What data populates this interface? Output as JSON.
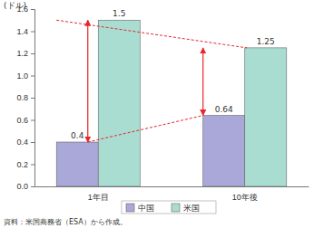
{
  "chart_data": {
    "type": "bar",
    "y_label": "(ドル)",
    "source": "資料：米国商務省（ESA）から作成。",
    "categories": [
      "1年目",
      "10年後"
    ],
    "series": [
      {
        "name": "中国",
        "color": "#aaa8d8",
        "values": [
          0.4,
          0.64
        ]
      },
      {
        "name": "米国",
        "color": "#a9ddd2",
        "values": [
          1.5,
          1.25
        ]
      }
    ],
    "ylim": [
      0,
      1.6
    ],
    "yticks": [
      {
        "value": 0,
        "label": "0.0"
      },
      0.2,
      0.4,
      0.6,
      0.8,
      {
        "value": 1,
        "label": "1.0"
      },
      1.2,
      1.4,
      1.6
    ],
    "grid": false,
    "legend": "bottom",
    "data_labels": true
  }
}
